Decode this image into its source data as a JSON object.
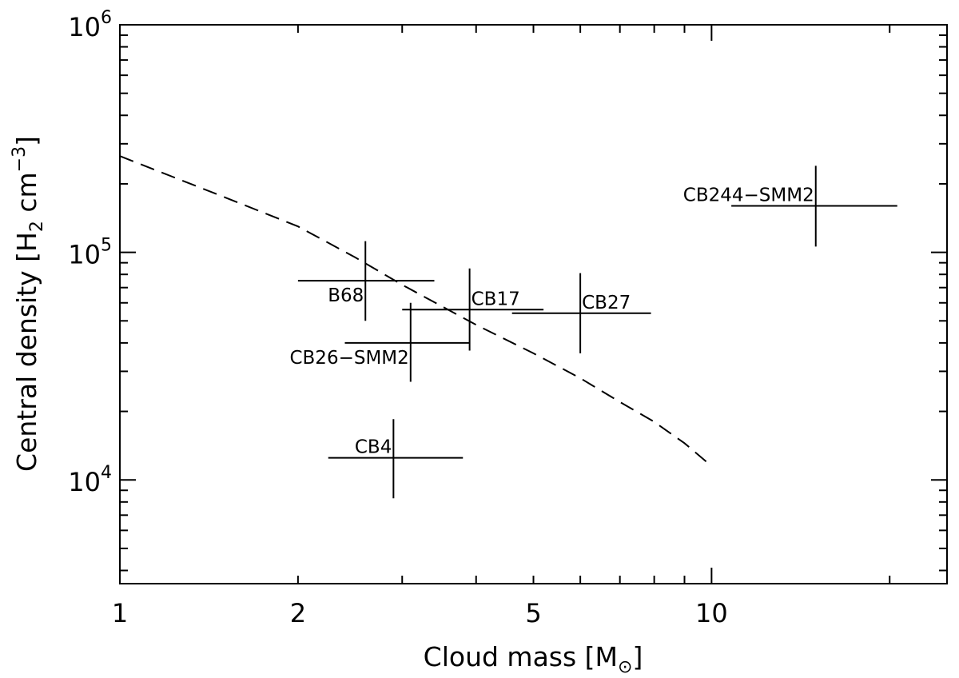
{
  "chart_data": {
    "type": "scatter",
    "title": "",
    "xlabel": "Cloud mass [M",
    "xlabel_symbol": "⊙",
    "xlabel_end": "]",
    "ylabel_pre": "Central density [H",
    "ylabel_sub": "2",
    "ylabel_mid": " cm",
    "ylabel_sup": "−3",
    "ylabel_end": "]",
    "xscale": "log",
    "yscale": "log",
    "xlim": [
      1,
      25
    ],
    "ylim": [
      3500,
      1000000
    ],
    "grid": false,
    "x_ticks": [
      {
        "value": 1,
        "label": "1"
      },
      {
        "value": 2,
        "label": "2"
      },
      {
        "value": 5,
        "label": "5"
      },
      {
        "value": 10,
        "label": "10"
      }
    ],
    "y_ticks": [
      {
        "value": 10000,
        "base": "10",
        "exp": "4"
      },
      {
        "value": 100000,
        "base": "10",
        "exp": "5"
      },
      {
        "value": 1000000,
        "base": "10",
        "exp": "6"
      }
    ],
    "points": [
      {
        "name": "B68",
        "x": 2.6,
        "y": 75000,
        "xerr": [
          2.0,
          3.4
        ],
        "yerr": [
          50000,
          112000
        ],
        "label_pos": "below-left"
      },
      {
        "name": "CB17",
        "x": 3.9,
        "y": 56000,
        "xerr": [
          3.0,
          5.2
        ],
        "yerr": [
          37000,
          85000
        ],
        "label_pos": "above-right"
      },
      {
        "name": "CB26−SMM2",
        "x": 3.1,
        "y": 40000,
        "xerr": [
          2.4,
          3.9
        ],
        "yerr": [
          27000,
          60000
        ],
        "label_pos": "below-left"
      },
      {
        "name": "CB27",
        "x": 6.0,
        "y": 54000,
        "xerr": [
          4.6,
          7.9
        ],
        "yerr": [
          36000,
          81000
        ],
        "label_pos": "above-right"
      },
      {
        "name": "CB4",
        "x": 2.9,
        "y": 12500,
        "xerr": [
          2.25,
          3.8
        ],
        "yerr": [
          8300,
          18500
        ],
        "label_pos": "above-left"
      },
      {
        "name": "CB244−SMM2",
        "x": 15.0,
        "y": 160000,
        "xerr": [
          10.8,
          20.6
        ],
        "yerr": [
          106000,
          240000
        ],
        "label_pos": "above-left"
      }
    ],
    "curve": {
      "style": "dashed",
      "x": [
        1.0,
        1.5,
        2.0,
        2.5,
        3.0,
        4.0,
        5.0,
        6.0,
        7.0,
        8.0,
        9.0,
        10.0
      ],
      "y": [
        265000,
        175000,
        130000,
        95000,
        72000,
        48000,
        36000,
        28000,
        22000,
        18000,
        14500,
        11500
      ]
    }
  }
}
